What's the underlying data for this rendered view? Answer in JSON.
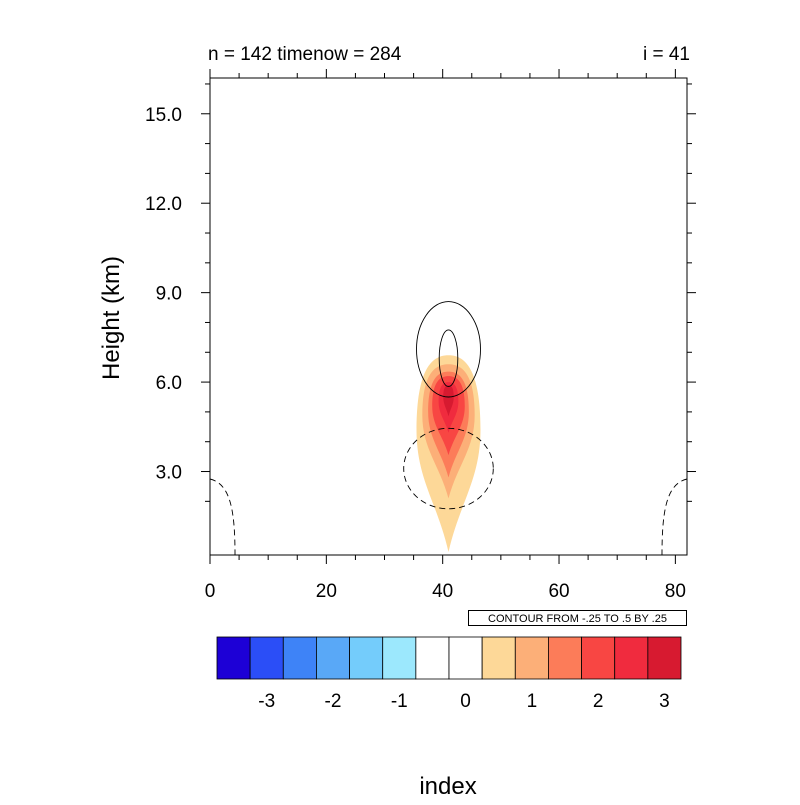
{
  "titles": {
    "left": "n = 142 timenow = 284",
    "right": "i = 41"
  },
  "axes": {
    "ylabel": "Height (km)",
    "xlabel": "index"
  },
  "info_box": "CONTOUR FROM -.25 TO .5 BY .25",
  "chart_data": {
    "type": "heatmap",
    "title": "",
    "xlabel": "index",
    "ylabel": "Height (km)",
    "xlim": [
      0,
      82
    ],
    "ylim": [
      0.2,
      16.2
    ],
    "x_ticks": [
      0,
      20,
      40,
      60,
      80
    ],
    "x_tick_labels": [
      "0",
      "20",
      "40",
      "60",
      "80"
    ],
    "y_ticks": [
      3.0,
      6.0,
      9.0,
      12.0,
      15.0
    ],
    "y_tick_labels": [
      "3.0",
      "6.0",
      "9.0",
      "12.0",
      "15.0"
    ],
    "filled_field": {
      "description_levels": [
        -3.25,
        -2.75,
        -2.25,
        -1.75,
        -1.25,
        -0.75,
        -0.25,
        0.25,
        0.75,
        1.25,
        1.75,
        2.25,
        2.75,
        3.25
      ],
      "plume_center_x": 41,
      "filled_shapes": [
        {
          "level": 0.75,
          "color": "#fdd898",
          "x_range": [
            35.5,
            46.5
          ],
          "y_range": [
            0.3,
            6.9
          ]
        },
        {
          "level": 1.25,
          "color": "#fcaf78",
          "x_range": [
            36.5,
            45.5
          ],
          "y_range": [
            2.1,
            6.6
          ]
        },
        {
          "level": 1.75,
          "color": "#fc7c59",
          "x_range": [
            37.5,
            44.5
          ],
          "y_range": [
            2.8,
            6.35
          ]
        },
        {
          "level": 2.25,
          "color": "#f84643",
          "x_range": [
            38.2,
            43.8
          ],
          "y_range": [
            3.55,
            6.2
          ]
        },
        {
          "level": 2.75,
          "color": "#f02b3e",
          "x_range": [
            39.3,
            42.7
          ],
          "y_range": [
            4.3,
            6.0
          ]
        },
        {
          "level": 3.25,
          "color": "#d71a30",
          "x_range": [
            40.1,
            41.9
          ],
          "y_range": [
            4.85,
            5.9
          ]
        }
      ]
    },
    "line_contours": {
      "from": -0.25,
      "to": 0.5,
      "step": 0.25,
      "positive_solid": [
        {
          "cx": 41,
          "cy": 7.1,
          "rx": 5.5,
          "ry": 1.6
        },
        {
          "cx": 41,
          "cy": 6.8,
          "rx": 1.6,
          "ry": 0.95
        }
      ],
      "negative_dashed": [
        {
          "cx": 41,
          "cy": 3.1,
          "rx": 7.7,
          "ry": 1.35
        },
        {
          "side": "left",
          "x_max": 4.3,
          "y_top": 2.75
        },
        {
          "side": "right",
          "x_min": 77.7,
          "y_top": 2.75
        }
      ]
    },
    "colorbar": {
      "colors": [
        "#1d00d6",
        "#2b4ef7",
        "#3e83f7",
        "#59a8f7",
        "#74ccfb",
        "#9ce8fd",
        "#ffffff",
        "#ffffff",
        "#fdd898",
        "#fcaf78",
        "#fc7c59",
        "#f84643",
        "#f02b3e",
        "#d71a30"
      ],
      "tick_labels": [
        "-3",
        "-2",
        "-1",
        "0",
        "1",
        "2",
        "3"
      ],
      "tick_values": [
        -3,
        -2,
        -1,
        0,
        1,
        2,
        3
      ],
      "boundaries": [
        -3.75,
        -3.25,
        -2.75,
        -2.25,
        -1.75,
        -1.25,
        -0.75,
        -0.25,
        0.25,
        0.75,
        1.25,
        1.75,
        2.25,
        2.75,
        3.25
      ]
    }
  }
}
